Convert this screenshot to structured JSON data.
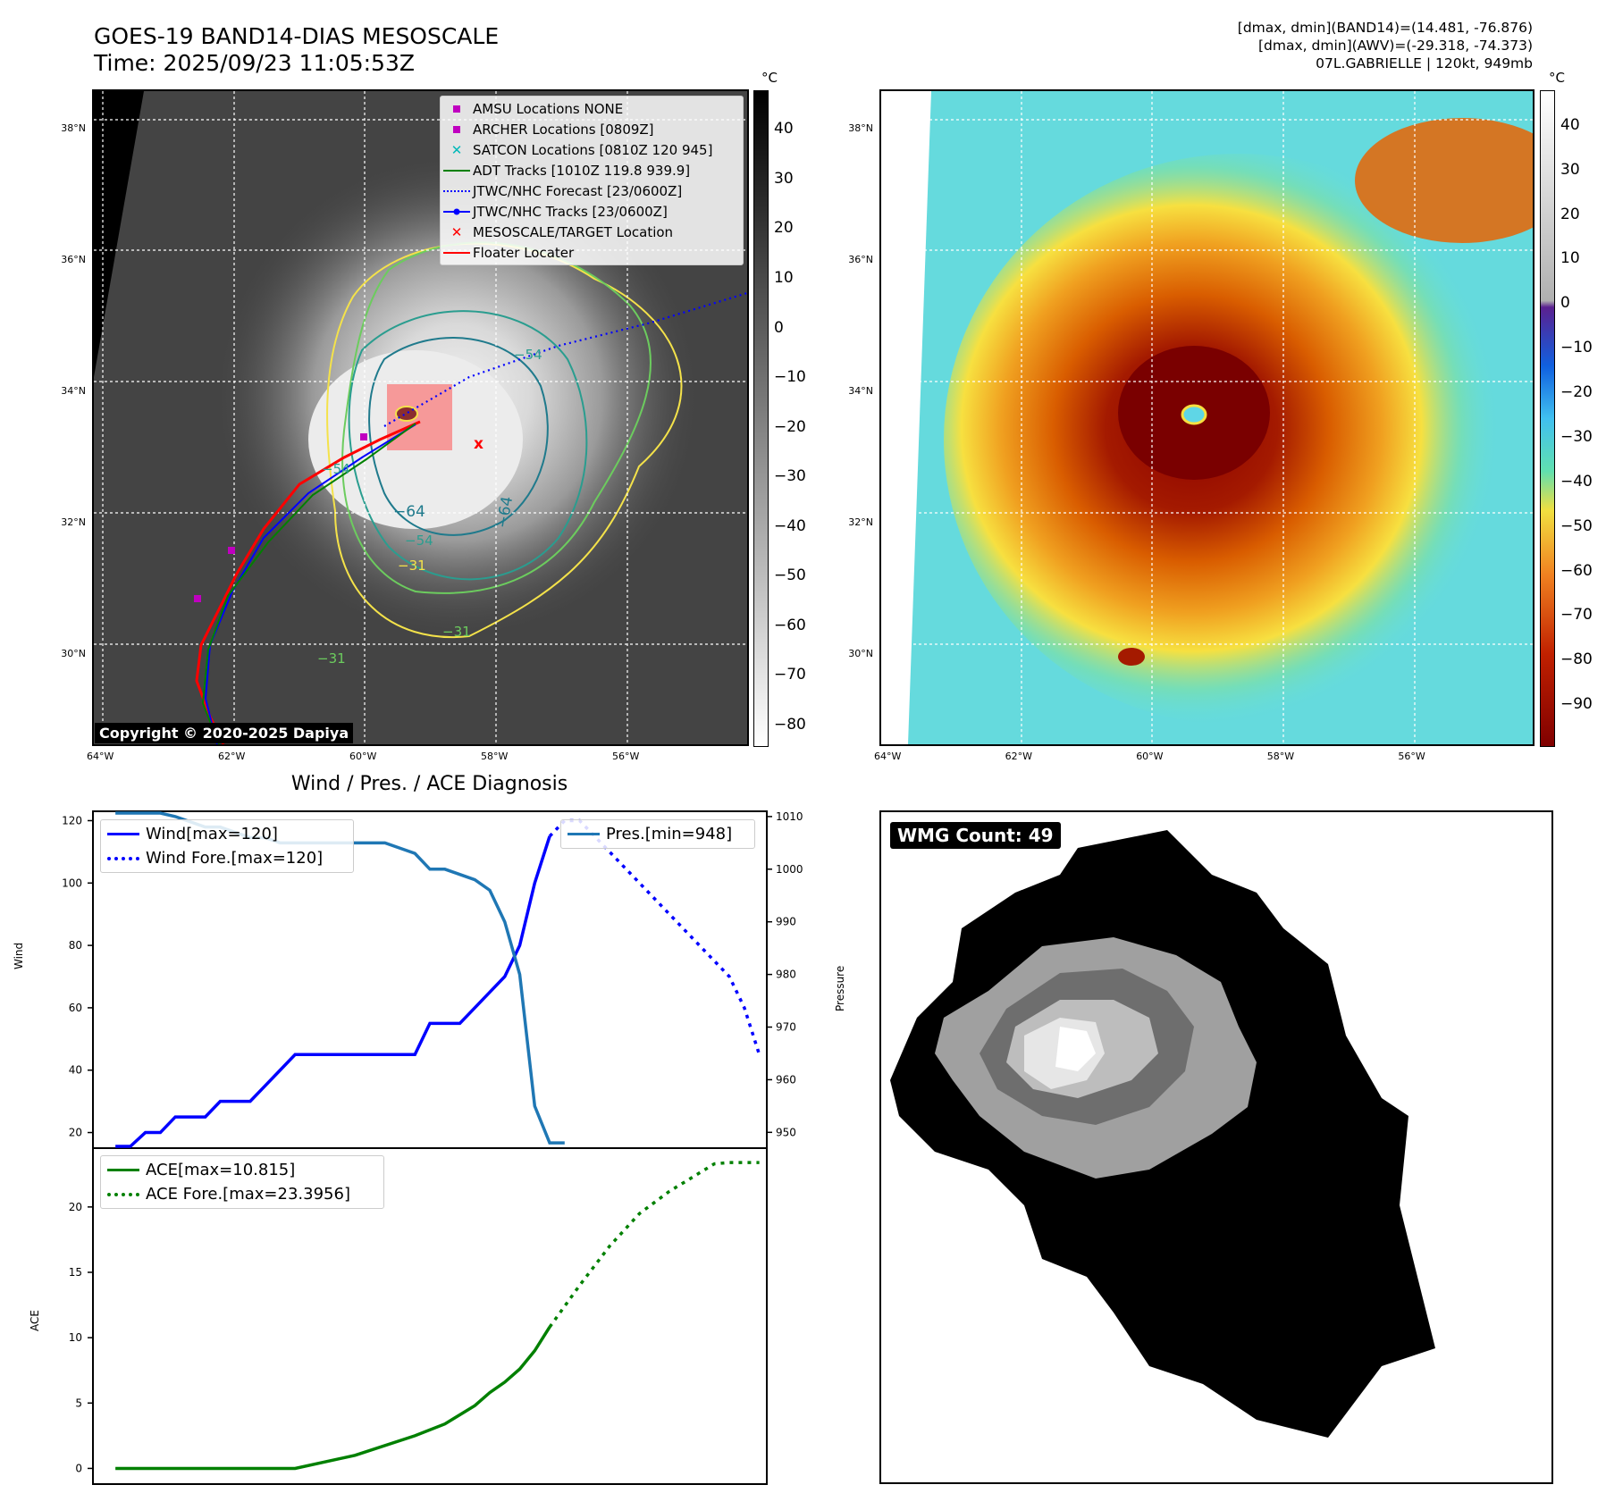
{
  "header": {
    "title_line1": "GOES-19 BAND14-DIAS MESOSCALE",
    "title_line2": "Time: 2025/09/23 11:05:53Z",
    "meta_line1": "[dmax, dmin](BAND14)=(14.481, -76.876)",
    "meta_line2": "[dmax, dmin](AWV)=(-29.318, -74.373)",
    "meta_line3": "07L.GABRIELLE | 120kt, 949mb"
  },
  "map_axes": {
    "lat_ticks": [
      "38°N",
      "36°N",
      "34°N",
      "32°N",
      "30°N"
    ],
    "lon_ticks": [
      "64°W",
      "62°W",
      "60°W",
      "58°W",
      "56°W"
    ],
    "lat_range": [
      28.6,
      38.6
    ],
    "lon_range": [
      -64.0,
      -54.0
    ]
  },
  "left_map": {
    "colorbar_unit": "°C",
    "colorbar_ticks": [
      "40",
      "30",
      "20",
      "10",
      "0",
      "−10",
      "−20",
      "−30",
      "−40",
      "−50",
      "−60",
      "−70",
      "−80"
    ],
    "colorbar_range": [
      48,
      -84
    ],
    "copyright": "Copyright © 2020-2025 Dapiya",
    "contour_labels": [
      "−64",
      "−64",
      "−54",
      "−54",
      "−31",
      "−31",
      "−31",
      "−54"
    ],
    "legend": [
      {
        "label": "AMSU Locations NONE",
        "symbol": "square",
        "color": "#c000c0"
      },
      {
        "label": "ARCHER Locations [0809Z]",
        "symbol": "square",
        "color": "#c000c0"
      },
      {
        "label": "SATCON Locations [0810Z 120 945]",
        "symbol": "x",
        "color": "#00b8b8"
      },
      {
        "label": "ADT Tracks [1010Z 119.8 939.9]",
        "symbol": "line",
        "color": "#008000"
      },
      {
        "label": "JTWC/NHC Forecast [23/0600Z]",
        "symbol": "dotted",
        "color": "#0000ff"
      },
      {
        "label": "JTWC/NHC Tracks [23/0600Z]",
        "symbol": "line-dot",
        "color": "#0000ff"
      },
      {
        "label": "MESOSCALE/TARGET Location",
        "symbol": "x",
        "color": "#ff0000"
      },
      {
        "label": "Floater Locater",
        "symbol": "line",
        "color": "#ff0000"
      }
    ]
  },
  "right_map": {
    "colorbar_unit": "°C",
    "colorbar_ticks": [
      "40",
      "30",
      "20",
      "10",
      "0",
      "−10",
      "−20",
      "−30",
      "−40",
      "−50",
      "−60",
      "−70",
      "−80",
      "−90"
    ],
    "colorbar_range": [
      48,
      -99
    ]
  },
  "diagnosis": {
    "title": "Wind / Pres. / ACE Diagnosis",
    "wind_ylabel": "Wind",
    "pressure_ylabel": "Pressure",
    "ace_ylabel": "ACE",
    "wind_ticks": [
      "120",
      "100",
      "80",
      "60",
      "40",
      "20"
    ],
    "pressure_ticks": [
      "1010",
      "1000",
      "990",
      "980",
      "970",
      "960",
      "950"
    ],
    "ace_ticks": [
      "20",
      "15",
      "10",
      "5",
      "0"
    ],
    "legend_wind": "Wind[max=120]",
    "legend_wind_fore": "Wind Fore.[max=120]",
    "legend_pres": "Pres.[min=948]",
    "legend_ace": "ACE[max=10.815]",
    "legend_ace_fore": "ACE Fore.[max=23.3956]"
  },
  "wmg": {
    "label": "WMG Count: 49"
  },
  "chart_data": [
    {
      "type": "line",
      "title": "Wind / Pres. / ACE Diagnosis",
      "ylabel": "Wind",
      "ylim": [
        15,
        123
      ],
      "xlim": [
        -1.5,
        43.5
      ],
      "series": [
        {
          "name": "Wind[max=120]",
          "color": "#0000ff",
          "style": "solid",
          "x": [
            0,
            1,
            2,
            3,
            4,
            5,
            6,
            7,
            8,
            9,
            10,
            11,
            12,
            13,
            14,
            15,
            16,
            17,
            18,
            19,
            20,
            21,
            22,
            23,
            24,
            25,
            26,
            27,
            28,
            29
          ],
          "y": [
            15,
            15,
            20,
            20,
            25,
            25,
            25,
            30,
            30,
            30,
            35,
            40,
            45,
            45,
            45,
            45,
            45,
            45,
            45,
            45,
            45,
            55,
            55,
            55,
            60,
            65,
            70,
            80,
            100,
            115
          ]
        },
        {
          "name": "Wind Fore.[max=120]",
          "color": "#0000ff",
          "style": "dotted",
          "x": [
            29,
            30,
            31,
            33,
            35,
            37,
            39,
            41,
            42,
            43
          ],
          "y": [
            115,
            120,
            120,
            110,
            100,
            90,
            80,
            70,
            60,
            45
          ]
        }
      ]
    },
    {
      "type": "line",
      "ylabel": "Pressure",
      "ylim": [
        947,
        1011
      ],
      "xlim": [
        -1.5,
        43.5
      ],
      "series": [
        {
          "name": "Pres.[min=948]",
          "color": "#1f77b4",
          "style": "solid",
          "x": [
            0,
            1,
            2,
            3,
            4,
            5,
            6,
            7,
            8,
            9,
            10,
            11,
            12,
            13,
            14,
            15,
            16,
            17,
            18,
            19,
            20,
            21,
            22,
            23,
            24,
            25,
            26,
            27,
            28,
            29,
            30
          ],
          "y": [
            1012,
            1012,
            1011,
            1011,
            1010,
            1009,
            1008,
            1008,
            1007,
            1006,
            1006,
            1005,
            1005,
            1005,
            1005,
            1005,
            1005,
            1005,
            1005,
            1004,
            1003,
            1000,
            1000,
            999,
            998,
            996,
            990,
            980,
            955,
            948,
            948
          ]
        }
      ]
    },
    {
      "type": "line",
      "ylabel": "ACE",
      "ylim": [
        -1.2,
        24.5
      ],
      "xlim": [
        -1.5,
        43.5
      ],
      "series": [
        {
          "name": "ACE[max=10.815]",
          "color": "#008000",
          "style": "solid",
          "x": [
            0,
            4,
            8,
            12,
            16,
            20,
            22,
            24,
            25,
            26,
            27,
            28,
            29
          ],
          "y": [
            0,
            0,
            0,
            0,
            1.0,
            2.5,
            3.4,
            4.8,
            5.8,
            6.6,
            7.6,
            9.0,
            10.815
          ]
        },
        {
          "name": "ACE Fore.[max=23.3956]",
          "color": "#008000",
          "style": "dotted",
          "x": [
            29,
            31,
            33,
            35,
            37,
            39,
            40,
            41,
            43
          ],
          "y": [
            10.815,
            14.0,
            17.0,
            19.5,
            21.2,
            22.6,
            23.3,
            23.4,
            23.4
          ]
        }
      ]
    }
  ]
}
